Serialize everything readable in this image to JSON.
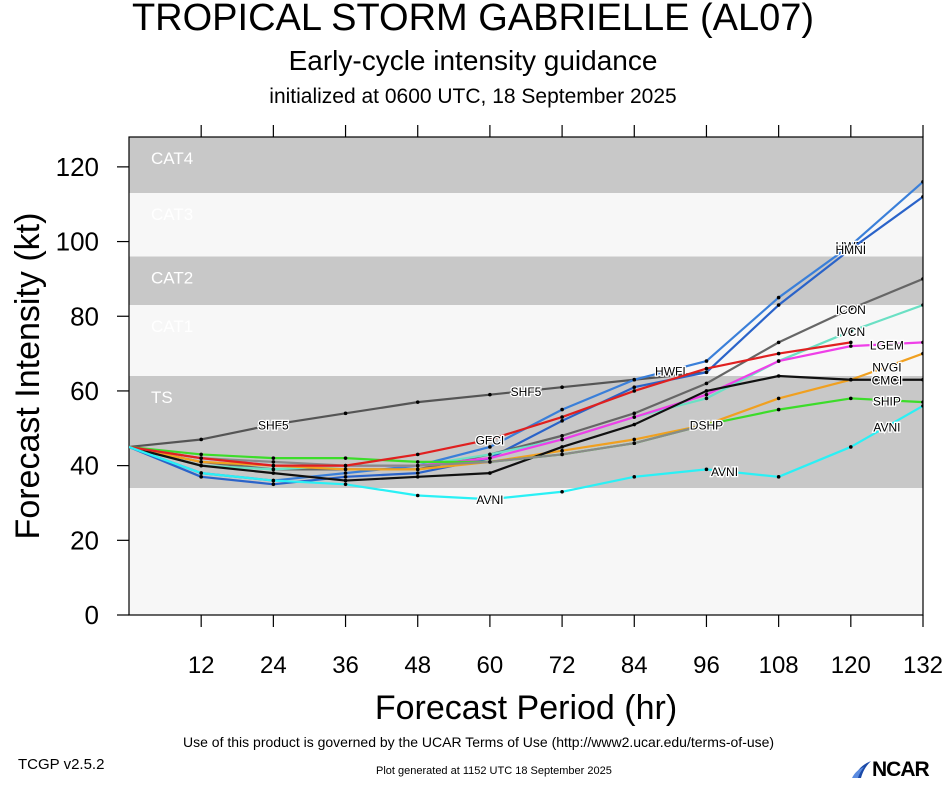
{
  "header": {
    "title": "TROPICAL STORM GABRIELLE (AL07)",
    "subtitle": "Early-cycle intensity guidance",
    "initialized": "initialized at 0600 UTC, 18 September 2025"
  },
  "footer": {
    "terms": "Use of this product is governed by the UCAR Terms of Use (http://www2.ucar.edu/terms-of-use)",
    "version": "TCGP v2.5.2",
    "generated": "Plot generated at 1152 UTC   18 September 2025",
    "logo_text": "NCAR"
  },
  "chart_data": {
    "type": "line",
    "xlabel": "Forecast Period (hr)",
    "ylabel": "Forecast Intensity (kt)",
    "xlim": [
      0,
      132
    ],
    "ylim": [
      0,
      128
    ],
    "xticks": [
      12,
      24,
      36,
      48,
      60,
      72,
      84,
      96,
      108,
      120,
      132
    ],
    "yticks": [
      0,
      20,
      40,
      60,
      80,
      100,
      120
    ],
    "bands": [
      {
        "label": "CAT4",
        "from": 113,
        "to": 128,
        "color": "#c8c8c8"
      },
      {
        "label": "CAT3",
        "from": 96,
        "to": 113,
        "color": "#f7f7f7"
      },
      {
        "label": "CAT2",
        "from": 83,
        "to": 96,
        "color": "#c8c8c8"
      },
      {
        "label": "CAT1",
        "from": 64,
        "to": 83,
        "color": "#f7f7f7"
      },
      {
        "label": "TS",
        "from": 34,
        "to": 64,
        "color": "#c8c8c8"
      },
      {
        "label": "",
        "from": 0,
        "to": 34,
        "color": "#f7f7f7"
      }
    ],
    "series": [
      {
        "name": "SHF5",
        "color": "#555555",
        "label_x": 24,
        "label_x2": 66,
        "x": [
          0,
          12,
          24,
          36,
          48,
          60,
          72,
          84,
          96
        ],
        "y": [
          45,
          47,
          51,
          54,
          57,
          59,
          61,
          63,
          65
        ]
      },
      {
        "name": "HWFI",
        "color": "#3a7fd9",
        "label_x": 120,
        "label_x2": 90,
        "x": [
          0,
          12,
          24,
          36,
          48,
          60,
          72,
          84,
          96,
          108,
          120,
          132
        ],
        "y": [
          45,
          38,
          36,
          38,
          40,
          45,
          55,
          63,
          68,
          85,
          99,
          116
        ]
      },
      {
        "name": "HMNI",
        "color": "#2a63c9",
        "label_x": 120,
        "x": [
          0,
          12,
          24,
          36,
          48,
          60,
          72,
          84,
          96,
          108,
          120,
          132
        ],
        "y": [
          45,
          37,
          35,
          37,
          38,
          42,
          52,
          61,
          65,
          83,
          98,
          112
        ]
      },
      {
        "name": "ICON",
        "color": "#666666",
        "label_x": 120,
        "x": [
          0,
          12,
          24,
          36,
          48,
          60,
          72,
          84,
          96,
          108,
          120,
          132
        ],
        "y": [
          45,
          41,
          39,
          39,
          39,
          43,
          48,
          54,
          62,
          73,
          82,
          90
        ]
      },
      {
        "name": "IVCN",
        "color": "#6be0c4",
        "label_x": 120,
        "x": [
          0,
          12,
          24,
          36,
          48,
          60,
          72,
          84,
          96,
          108,
          120,
          132
        ],
        "y": [
          45,
          40,
          39,
          40,
          40,
          43,
          47,
          53,
          58,
          68,
          76,
          83
        ]
      },
      {
        "name": "LGEM",
        "color": "#ef3fe8",
        "label_x": 126,
        "x": [
          0,
          12,
          24,
          36,
          48,
          60,
          72,
          84,
          96,
          108,
          120,
          132
        ],
        "y": [
          45,
          42,
          40,
          40,
          40,
          42,
          47,
          53,
          59,
          68,
          72,
          73
        ]
      },
      {
        "name": "NVGI",
        "color": "#f0a020",
        "label_x": 126,
        "x": [
          0,
          12,
          24,
          36,
          48,
          60,
          72,
          84,
          96,
          108,
          120,
          132
        ],
        "y": [
          45,
          41,
          40,
          39,
          39,
          41,
          44,
          47,
          51,
          58,
          63,
          70
        ]
      },
      {
        "name": "CMCI",
        "color": "#111111",
        "label_x": 126,
        "x": [
          0,
          12,
          24,
          36,
          48,
          60,
          72,
          84,
          96,
          108,
          120,
          132
        ],
        "y": [
          45,
          40,
          38,
          36,
          37,
          38,
          45,
          51,
          60,
          64,
          63,
          63
        ]
      },
      {
        "name": "SHIP",
        "color": "#3cdc2a",
        "label_x": 126,
        "x": [
          0,
          12,
          24,
          36,
          48,
          60,
          72,
          84,
          96,
          108,
          120,
          132
        ],
        "y": [
          45,
          43,
          42,
          42,
          41,
          41,
          43,
          46,
          51,
          55,
          58,
          57
        ]
      },
      {
        "name": "DSHP",
        "color": "#8a8a8a",
        "label_x": 96,
        "x": [
          0,
          12,
          24,
          36,
          48,
          60,
          72,
          84,
          96
        ],
        "y": [
          45,
          42,
          41,
          40,
          40,
          41,
          43,
          46,
          51
        ]
      },
      {
        "name": "GFCI",
        "color": "#e02020",
        "label_x": 60,
        "x": [
          0,
          12,
          24,
          36,
          48,
          60,
          72,
          84,
          96,
          108,
          120
        ],
        "y": [
          45,
          42,
          40,
          40,
          43,
          47,
          53,
          60,
          66,
          70,
          73
        ]
      },
      {
        "name": "AVNI",
        "color": "#2af0f5",
        "label_x": 60,
        "label_x2": 99,
        "label_x3": 126,
        "x": [
          0,
          12,
          24,
          36,
          48,
          60,
          72,
          84,
          96,
          108,
          120,
          132
        ],
        "y": [
          45,
          38,
          36,
          35,
          32,
          31,
          33,
          37,
          39,
          37,
          45,
          56
        ]
      }
    ]
  }
}
